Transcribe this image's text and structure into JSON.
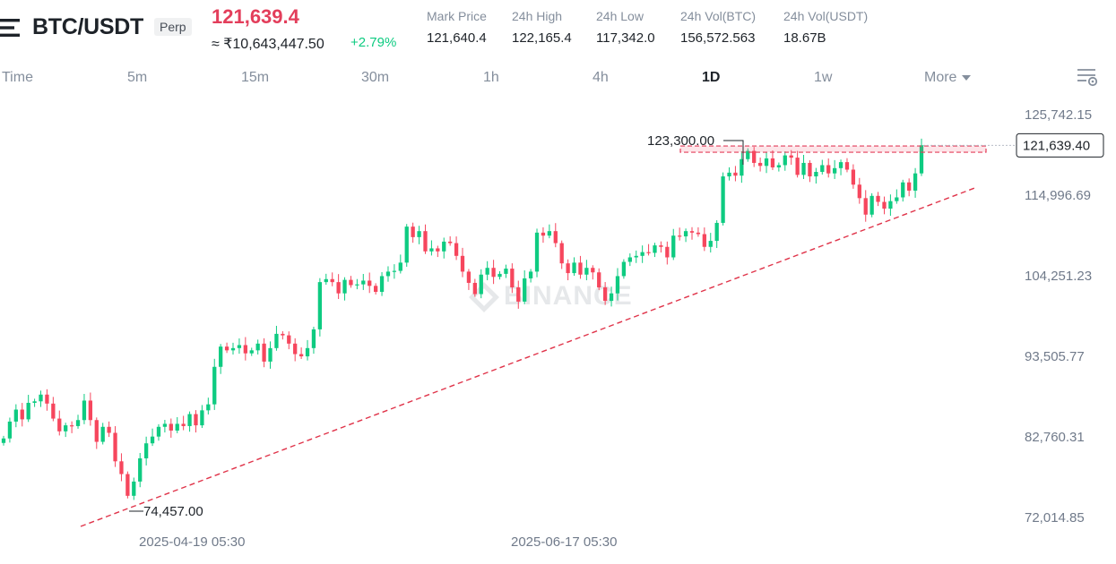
{
  "header": {
    "pair": "BTC/USDT",
    "badge": "Perp",
    "last_price": "121,639.4",
    "inr_price": "≈ ₹10,643,447.50",
    "change": "+2.79%",
    "stats": [
      {
        "label": "Mark Price",
        "value": "121,640.4"
      },
      {
        "label": "24h High",
        "value": "122,165.4"
      },
      {
        "label": "24h Low",
        "value": "117,342.0"
      },
      {
        "label": "24h Vol(BTC)",
        "value": "156,572.563"
      },
      {
        "label": "24h Vol(USDT)",
        "value": "18.67B"
      }
    ]
  },
  "intervals": {
    "time": "Time",
    "m5": "5m",
    "m15": "15m",
    "m30": "30m",
    "h1": "1h",
    "h4": "4h",
    "d1": "1D",
    "w1": "1w",
    "more": "More",
    "active": "1D"
  },
  "watermark": "BINANCE",
  "colors": {
    "up": "#0ecb81",
    "down": "#f6465d",
    "accent": "#e33e5b",
    "trend": "#e0344a"
  },
  "icons": {
    "pair": "menu-lines-icon",
    "settings": "chart-settings-icon",
    "more": "chevron-down-icon"
  },
  "chart_data": {
    "type": "candlestick",
    "y_axis_labels": [
      "125,742.15",
      "114,996.69",
      "104,251.23",
      "93,505.77",
      "82,760.31",
      "72,014.85"
    ],
    "x_axis_labels": [
      "2025-04-19 05:30",
      "2025-06-17 05:30"
    ],
    "ylim": [
      72014.85,
      125742.15
    ],
    "current_price_label": "121,639.40",
    "high_label": "123,300.00",
    "low_label": "74,457.00",
    "trendline": {
      "from": "74,457.00 low",
      "direction": "ascending",
      "style": "dashed"
    },
    "resistance_zone": "near 121,639",
    "series_close": [
      82550,
      84800,
      86400,
      85100,
      87300,
      87500,
      88400,
      87200,
      85200,
      83500,
      84300,
      84200,
      85000,
      87600,
      85000,
      82100,
      84100,
      83300,
      79500,
      77800,
      74900,
      76800,
      79900,
      81900,
      82800,
      84100,
      84500,
      83600,
      84500,
      84200,
      85800,
      84300,
      86300,
      87100,
      92100,
      94800,
      94300,
      94600,
      95000,
      93900,
      94300,
      95200,
      92800,
      94600,
      96500,
      96300,
      95200,
      93800,
      93500,
      94600,
      97100,
      103400,
      103800,
      103400,
      101900,
      103700,
      103000,
      103100,
      103600,
      102900,
      102100,
      104200,
      104800,
      104900,
      106000,
      110800,
      109400,
      110200,
      107500,
      107900,
      107500,
      108800,
      108600,
      106900,
      104800,
      103300,
      101800,
      104400,
      105300,
      104100,
      104500,
      105200,
      102700,
      100800,
      103900,
      104800,
      110000,
      109600,
      110200,
      108600,
      105900,
      104600,
      106000,
      104400,
      105300,
      104700,
      102700,
      100900,
      101900,
      104200,
      106100,
      106700,
      106900,
      107400,
      107300,
      108300,
      108100,
      106700,
      109600,
      109500,
      110200,
      110000,
      109800,
      108100,
      108900,
      111300,
      117500,
      118000,
      117600,
      119800,
      120900,
      119300,
      118900,
      119900,
      118700,
      119000,
      120300,
      120000,
      117700,
      119300,
      117500,
      118100,
      119000,
      117900,
      118600,
      119400,
      118400,
      116400,
      114600,
      112400,
      114900,
      114100,
      113200,
      114200,
      114700,
      116700,
      115600,
      117900,
      121650
    ]
  }
}
